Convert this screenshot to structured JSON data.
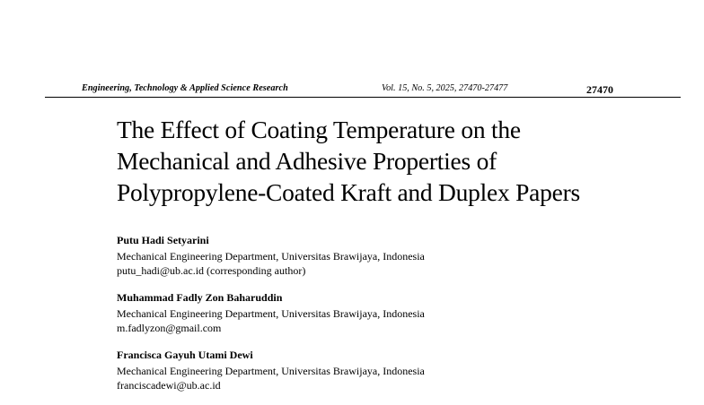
{
  "running_header": {
    "journal": "Engineering, Technology & Applied Science Research",
    "volume_info": "Vol. 15, No. 5, 2025, 27470-27477",
    "page_number": "27470"
  },
  "title": {
    "lines": [
      "The Effect of Coating Temperature on the",
      "Mechanical and Adhesive Properties of",
      "Polypropylene-Coated Kraft and Duplex Papers"
    ]
  },
  "authors": [
    {
      "name": "Putu Hadi Setyarini",
      "affiliation": "Mechanical Engineering Department, Universitas Brawijaya, Indonesia",
      "email": "putu_hadi@ub.ac.id (corresponding author)"
    },
    {
      "name": "Muhammad Fadly Zon Baharuddin",
      "affiliation": "Mechanical Engineering Department, Universitas Brawijaya, Indonesia",
      "email": "m.fadlyzon@gmail.com"
    },
    {
      "name": "Francisca Gayuh Utami Dewi",
      "affiliation": "Mechanical Engineering Department, Universitas Brawijaya, Indonesia",
      "email": "franciscadewi@ub.ac.id"
    }
  ]
}
